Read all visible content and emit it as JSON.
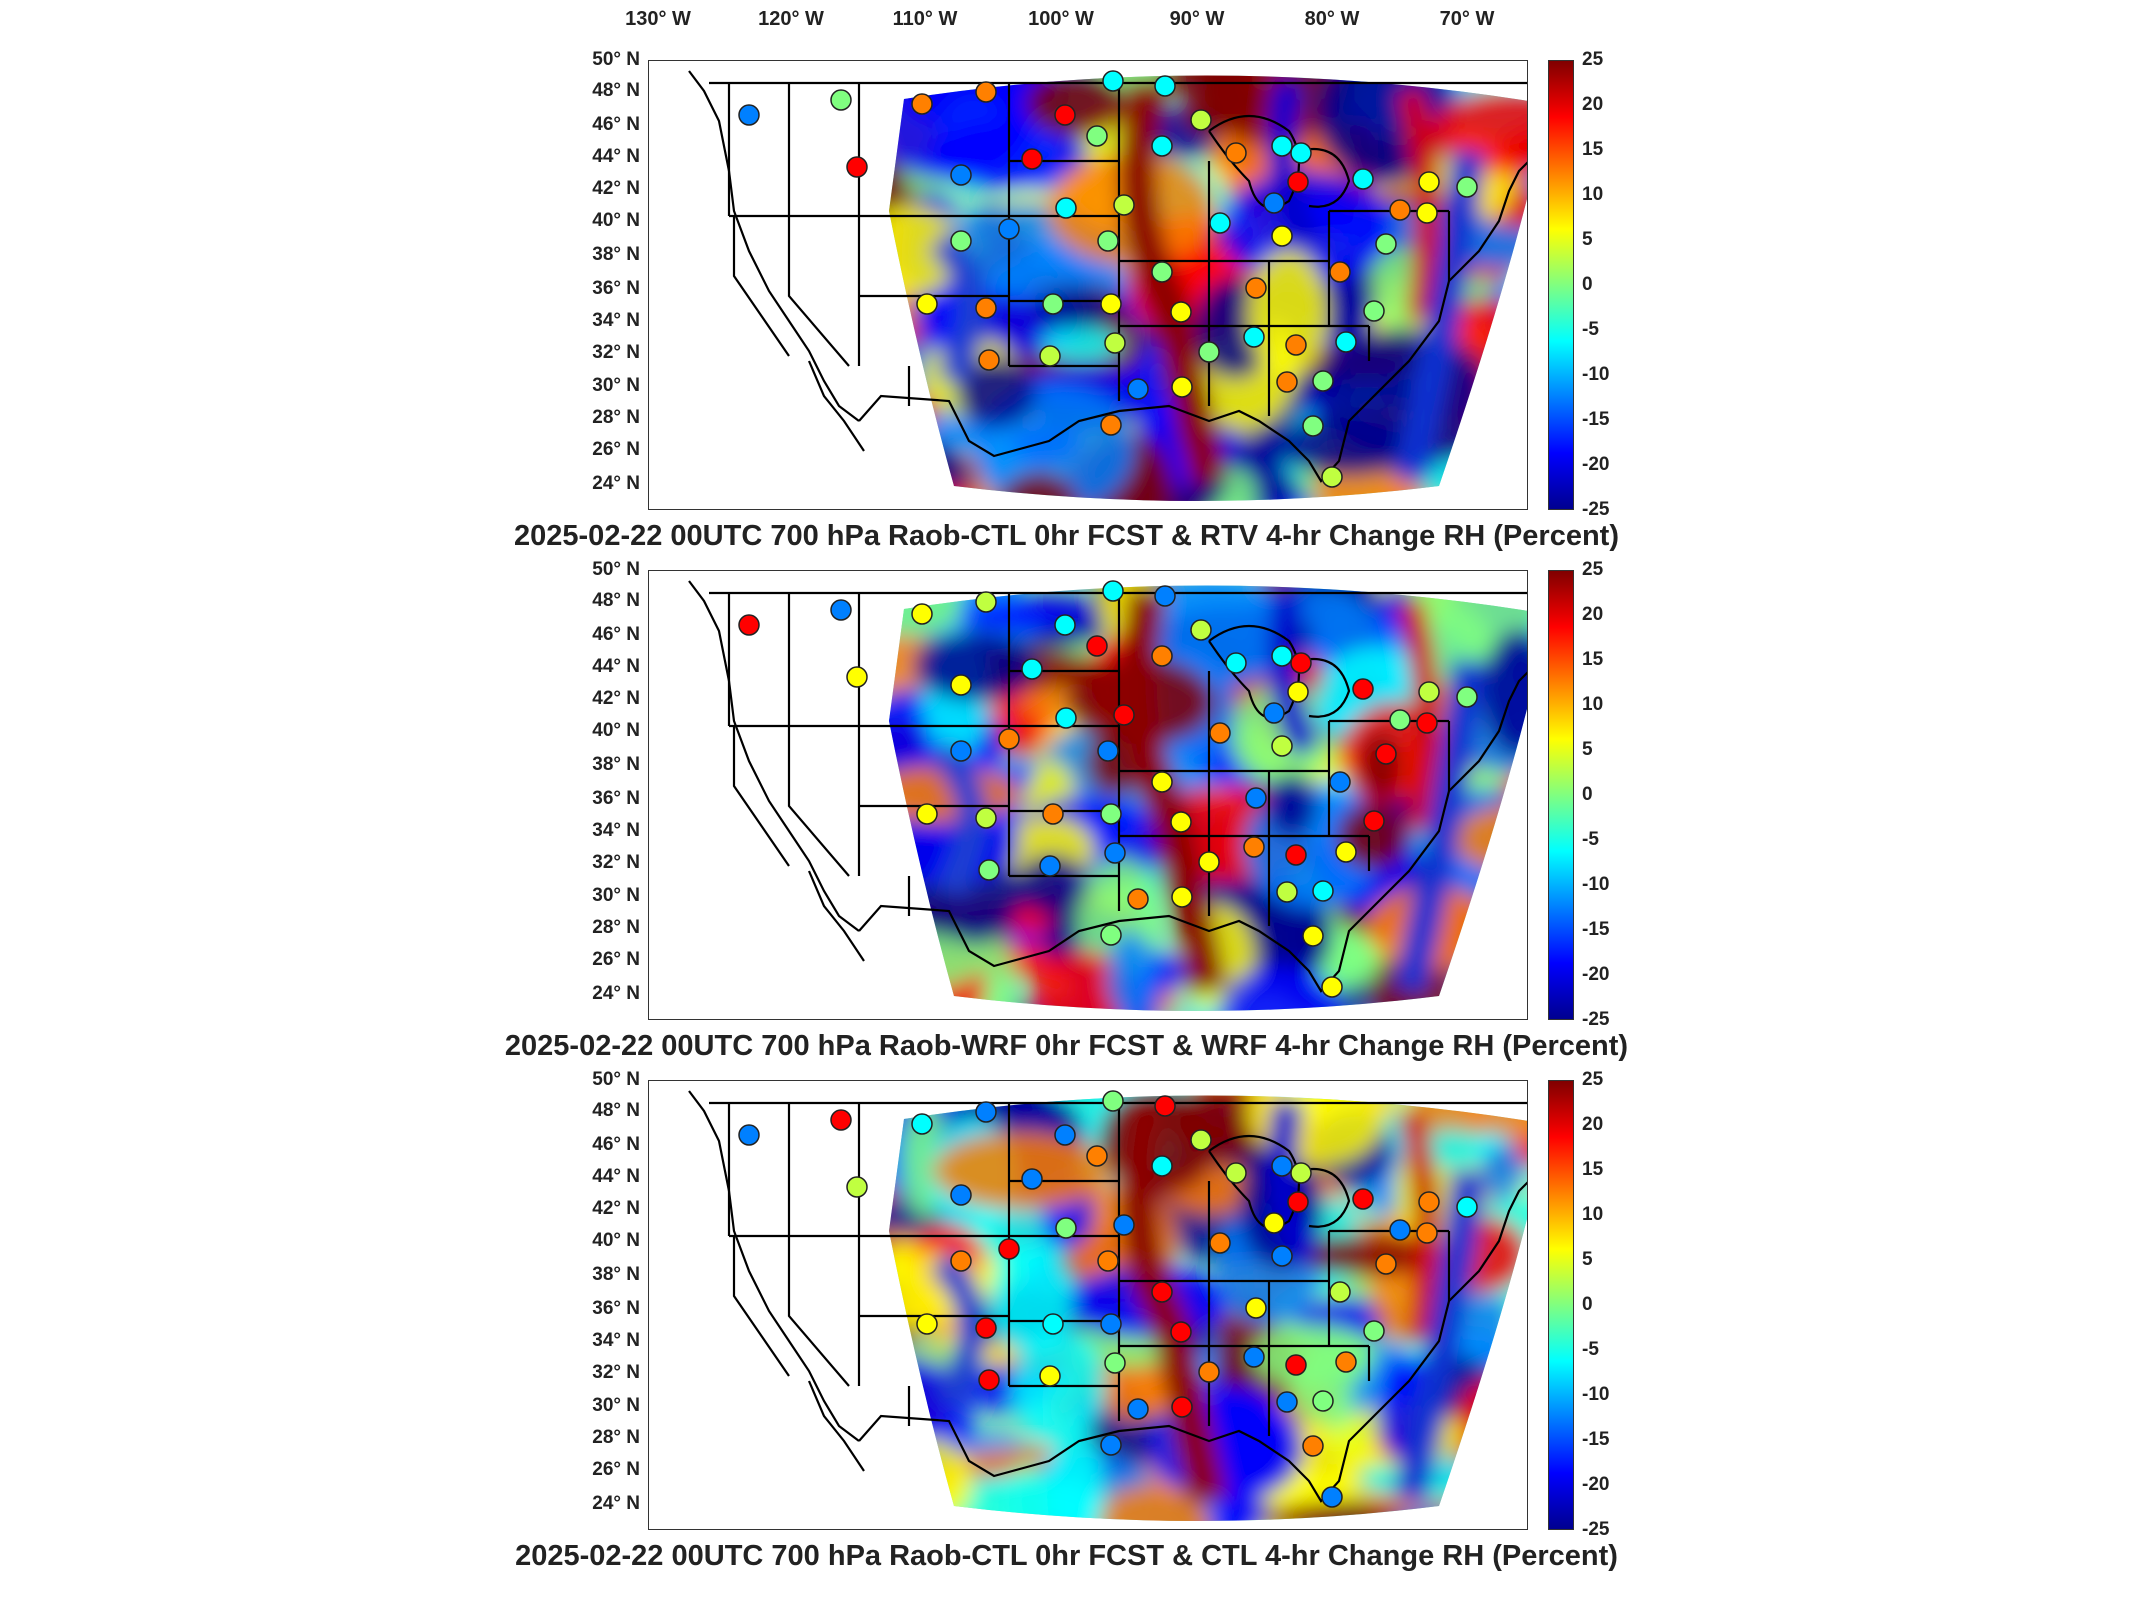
{
  "longitude_labels": [
    "130° W",
    "120° W",
    "110° W",
    "100° W",
    "90° W",
    "80° W",
    "70° W"
  ],
  "latitude_labels": [
    "50° N",
    "48° N",
    "46° N",
    "44° N",
    "42° N",
    "40° N",
    "38° N",
    "36° N",
    "34° N",
    "32° N",
    "30° N",
    "28° N",
    "26° N",
    "24° N"
  ],
  "colorbar": {
    "ticks": [
      "25",
      "20",
      "15",
      "10",
      "5",
      "0",
      "-5",
      "-10",
      "-15",
      "-20",
      "-25"
    ],
    "min": -25,
    "max": 25,
    "colormap": [
      "#00008f",
      "#0000ff",
      "#0080ff",
      "#00ffff",
      "#80ff80",
      "#ffff00",
      "#ff8000",
      "#ff0000",
      "#800000"
    ]
  },
  "panels": [
    {
      "title": "2025-02-22 00UTC 700 hPa Raob-CTL 0hr FCST & RTV 4-hr Change RH (Percent)"
    },
    {
      "title": "2025-02-22 00UTC 700 hPa Raob-WRF 0hr FCST & WRF 4-hr Change RH (Percent)"
    },
    {
      "title": "2025-02-22 00UTC 700 hPa Raob-CTL 0hr FCST & CTL 4-hr Change RH (Percent)"
    }
  ],
  "raob_sites": [
    {
      "lon": -124.2,
      "lat": 46.8
    },
    {
      "lon": -117.4,
      "lat": 47.7
    },
    {
      "lon": -111.4,
      "lat": 47.5
    },
    {
      "lon": -106.6,
      "lat": 48.2
    },
    {
      "lon": -100.8,
      "lat": 46.8
    },
    {
      "lon": -97.2,
      "lat": 48.9
    },
    {
      "lon": -93.4,
      "lat": 48.6
    },
    {
      "lon": -93.6,
      "lat": 44.9
    },
    {
      "lon": -98.4,
      "lat": 45.5
    },
    {
      "lon": -103.2,
      "lat": 44.1
    },
    {
      "lon": -108.5,
      "lat": 43.1
    },
    {
      "lon": -116.2,
      "lat": 43.6
    },
    {
      "lon": -100.7,
      "lat": 41.1
    },
    {
      "lon": -96.4,
      "lat": 41.3
    },
    {
      "lon": -104.9,
      "lat": 39.8
    },
    {
      "lon": -108.5,
      "lat": 39.1
    },
    {
      "lon": -97.6,
      "lat": 39.1
    },
    {
      "lon": -93.6,
      "lat": 37.2
    },
    {
      "lon": -89.3,
      "lat": 40.2
    },
    {
      "lon": -84.7,
      "lat": 39.4
    },
    {
      "lon": -86.6,
      "lat": 36.2
    },
    {
      "lon": -83.7,
      "lat": 32.7
    },
    {
      "lon": -86.8,
      "lat": 33.2
    },
    {
      "lon": -90.1,
      "lat": 32.3
    },
    {
      "lon": -92.2,
      "lat": 34.7
    },
    {
      "lon": -97.4,
      "lat": 35.2
    },
    {
      "lon": -101.7,
      "lat": 35.2
    },
    {
      "lon": -106.6,
      "lat": 35.0
    },
    {
      "lon": -111.0,
      "lat": 35.2
    },
    {
      "lon": -97.1,
      "lat": 32.8
    },
    {
      "lon": -101.9,
      "lat": 32.0
    },
    {
      "lon": -106.4,
      "lat": 31.8
    },
    {
      "lon": -97.4,
      "lat": 27.8
    },
    {
      "lon": -95.4,
      "lat": 30.0
    },
    {
      "lon": -92.1,
      "lat": 30.1
    },
    {
      "lon": -84.3,
      "lat": 30.4
    },
    {
      "lon": -81.7,
      "lat": 30.5
    },
    {
      "lon": -80.0,
      "lat": 32.9
    },
    {
      "lon": -77.9,
      "lat": 34.8
    },
    {
      "lon": -80.4,
      "lat": 37.2
    },
    {
      "lon": -77.0,
      "lat": 38.9
    },
    {
      "lon": -76.0,
      "lat": 41.0
    },
    {
      "lon": -74.0,
      "lat": 40.8
    },
    {
      "lon": -71.0,
      "lat": 42.4
    },
    {
      "lon": -73.8,
      "lat": 42.7
    },
    {
      "lon": -78.7,
      "lat": 42.9
    },
    {
      "lon": -83.5,
      "lat": 42.7
    },
    {
      "lon": -84.7,
      "lat": 44.9
    },
    {
      "lon": -88.1,
      "lat": 44.5
    },
    {
      "lon": -90.7,
      "lat": 46.5
    },
    {
      "lon": -82.4,
      "lat": 27.7
    },
    {
      "lon": -81.0,
      "lat": 24.6
    },
    {
      "lon": -83.3,
      "lat": 44.5
    },
    {
      "lon": -85.3,
      "lat": 41.4
    }
  ]
}
